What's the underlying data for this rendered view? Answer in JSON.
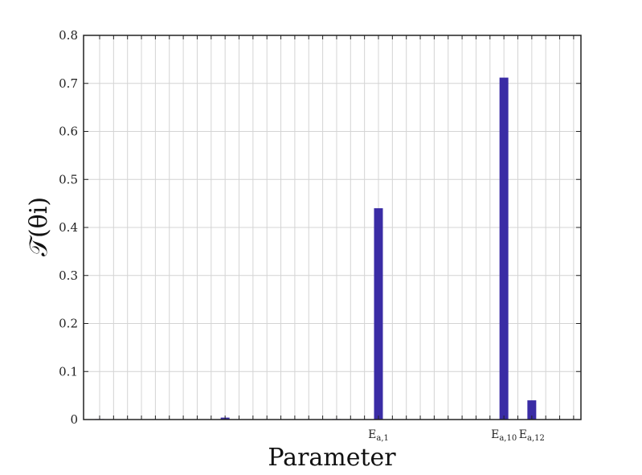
{
  "chart_data": {
    "type": "bar",
    "title": "",
    "xlabel": "Parameter",
    "ylabel": "𝒯(θi)",
    "ylim": [
      0,
      0.8
    ],
    "yticks": [
      0,
      0.1,
      0.2,
      0.3,
      0.4,
      0.5,
      0.6,
      0.7,
      0.8
    ],
    "grid": true,
    "bar_color": "#3a2ca5",
    "n_parameters": 36,
    "labeled_categories": [
      {
        "index": 20,
        "base": "E",
        "sub": "a,1"
      },
      {
        "index": 29,
        "base": "E",
        "sub": "a,10"
      },
      {
        "index": 31,
        "base": "E",
        "sub": "a,12"
      }
    ],
    "values": [
      0.001,
      0,
      0,
      0,
      0,
      0,
      0,
      0,
      0,
      0.004,
      0,
      0,
      0,
      0,
      0,
      0,
      0,
      0.001,
      0,
      0,
      0.44,
      0,
      0,
      0,
      0,
      0,
      0,
      0,
      0,
      0.712,
      0,
      0.04,
      0,
      0,
      0,
      0
    ]
  }
}
